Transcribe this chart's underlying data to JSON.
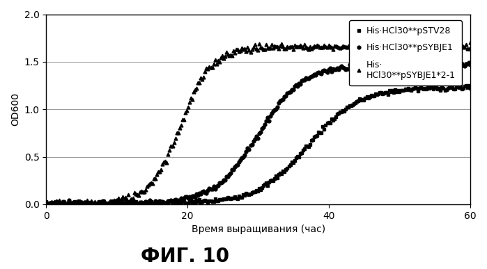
{
  "title": "ФИГ. 10",
  "xlabel": "Время выращивания (час)",
  "ylabel": "OD600",
  "xlim": [
    0,
    60
  ],
  "ylim": [
    0,
    2
  ],
  "xticks": [
    0,
    20,
    40,
    60
  ],
  "yticks": [
    0,
    0.5,
    1,
    1.5,
    2
  ],
  "series": [
    {
      "label": "His·HCl30**pSTV28",
      "color": "#000000",
      "marker": "s",
      "markersize": 3.5,
      "inflection": 37,
      "k": 0.28,
      "ymax": 1.22,
      "y0": 0.01,
      "noise": 0.012
    },
    {
      "label": "His·HCl30**pSYBJE1",
      "color": "#000000",
      "marker": "o",
      "markersize": 3.5,
      "inflection": 30,
      "k": 0.32,
      "ymax": 1.46,
      "y0": 0.01,
      "noise": 0.012
    },
    {
      "label": "His·\nHCl30**pSYBJE1*2-1",
      "color": "#000000",
      "marker": "^",
      "markersize": 3.5,
      "inflection": 19,
      "k": 0.45,
      "ymax": 1.65,
      "y0": 0.01,
      "noise": 0.018
    }
  ],
  "background_color": "#ffffff",
  "title_fontsize": 20,
  "axis_label_fontsize": 10,
  "tick_fontsize": 10,
  "legend_fontsize": 9
}
